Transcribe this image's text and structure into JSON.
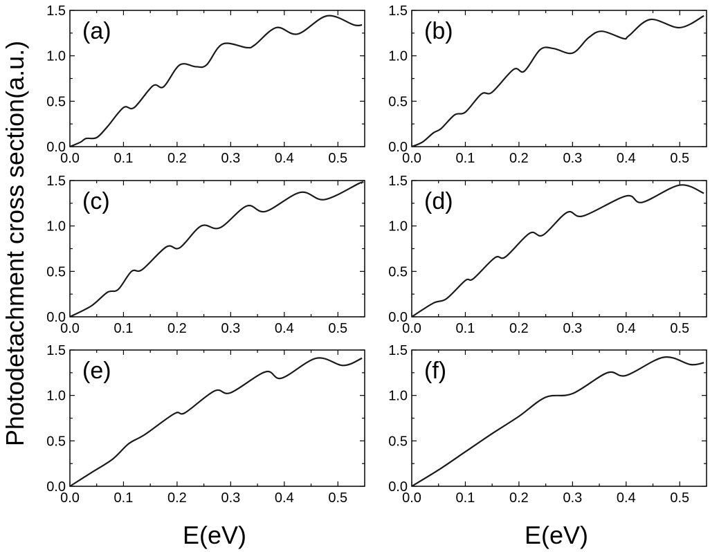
{
  "figure": {
    "ylabel": "Photodetachment cross section(a.u.)",
    "xlabel": "E(eV)"
  },
  "chart_data": [
    {
      "type": "line",
      "panel_label": "(a)",
      "xlim": [
        0,
        0.55
      ],
      "ylim": [
        0,
        1.5
      ],
      "x_ticks": [
        0.0,
        0.1,
        0.2,
        0.3,
        0.4,
        0.5
      ],
      "x_tick_labels": [
        "0.0",
        "0.1",
        "0.2",
        "0.3",
        "0.4",
        "0.5"
      ],
      "y_ticks": [
        0.0,
        0.5,
        1.0,
        1.5
      ],
      "y_tick_labels": [
        "0.0",
        "0.5",
        "1.0",
        "1.5"
      ],
      "x": [
        0,
        0.02,
        0.03,
        0.05,
        0.07,
        0.1,
        0.12,
        0.155,
        0.175,
        0.205,
        0.235,
        0.255,
        0.285,
        0.33,
        0.345,
        0.385,
        0.425,
        0.48,
        0.53,
        0.545
      ],
      "y": [
        0,
        0.05,
        0.09,
        0.1,
        0.22,
        0.43,
        0.43,
        0.67,
        0.66,
        0.9,
        0.88,
        0.9,
        1.13,
        1.09,
        1.12,
        1.31,
        1.24,
        1.44,
        1.34,
        1.34
      ]
    },
    {
      "type": "line",
      "panel_label": "(b)",
      "xlim": [
        0,
        0.55
      ],
      "ylim": [
        0,
        1.5
      ],
      "x_ticks": [
        0.0,
        0.1,
        0.2,
        0.3,
        0.4,
        0.5
      ],
      "x_tick_labels": [
        "0.0",
        "0.1",
        "0.2",
        "0.3",
        "0.4",
        "0.5"
      ],
      "y_ticks": [
        0.0,
        0.5,
        1.0,
        1.5
      ],
      "y_tick_labels": [
        "0.0",
        "0.5",
        "1.0",
        "1.5"
      ],
      "x": [
        0,
        0.02,
        0.04,
        0.055,
        0.08,
        0.1,
        0.13,
        0.15,
        0.19,
        0.21,
        0.24,
        0.265,
        0.3,
        0.33,
        0.355,
        0.395,
        0.405,
        0.445,
        0.5,
        0.545
      ],
      "y": [
        0,
        0.05,
        0.15,
        0.2,
        0.35,
        0.38,
        0.58,
        0.6,
        0.85,
        0.83,
        1.07,
        1.08,
        1.03,
        1.2,
        1.27,
        1.19,
        1.22,
        1.4,
        1.31,
        1.44
      ]
    },
    {
      "type": "line",
      "panel_label": "(c)",
      "xlim": [
        0,
        0.55
      ],
      "ylim": [
        0,
        1.5
      ],
      "x_ticks": [
        0.0,
        0.1,
        0.2,
        0.3,
        0.4,
        0.5
      ],
      "x_tick_labels": [
        "0.0",
        "0.1",
        "0.2",
        "0.3",
        "0.4",
        "0.5"
      ],
      "y_ticks": [
        0.0,
        0.5,
        1.0,
        1.5
      ],
      "y_tick_labels": [
        "0.0",
        "0.5",
        "1.0",
        "1.5"
      ],
      "x": [
        0,
        0.04,
        0.07,
        0.09,
        0.115,
        0.135,
        0.18,
        0.205,
        0.245,
        0.28,
        0.33,
        0.365,
        0.43,
        0.475,
        0.54,
        0.545
      ],
      "y": [
        0,
        0.12,
        0.27,
        0.3,
        0.5,
        0.52,
        0.77,
        0.76,
        1.0,
        0.98,
        1.22,
        1.16,
        1.37,
        1.29,
        1.47,
        1.47
      ]
    },
    {
      "type": "line",
      "panel_label": "(d)",
      "xlim": [
        0,
        0.55
      ],
      "ylim": [
        0,
        1.5
      ],
      "x_ticks": [
        0.0,
        0.1,
        0.2,
        0.3,
        0.4,
        0.5
      ],
      "x_tick_labels": [
        "0.0",
        "0.1",
        "0.2",
        "0.3",
        "0.4",
        "0.5"
      ],
      "y_ticks": [
        0.0,
        0.5,
        1.0,
        1.5
      ],
      "y_tick_labels": [
        "0.0",
        "0.5",
        "1.0",
        "1.5"
      ],
      "x": [
        0,
        0.04,
        0.065,
        0.1,
        0.115,
        0.155,
        0.175,
        0.22,
        0.245,
        0.29,
        0.32,
        0.4,
        0.43,
        0.5,
        0.545
      ],
      "y": [
        0,
        0.15,
        0.2,
        0.4,
        0.42,
        0.65,
        0.66,
        0.92,
        0.9,
        1.15,
        1.11,
        1.33,
        1.26,
        1.45,
        1.36
      ]
    },
    {
      "type": "line",
      "panel_label": "(e)",
      "xlim": [
        0,
        0.55
      ],
      "ylim": [
        0,
        1.5
      ],
      "x_ticks": [
        0.0,
        0.1,
        0.2,
        0.3,
        0.4,
        0.5
      ],
      "x_tick_labels": [
        "0.0",
        "0.1",
        "0.2",
        "0.3",
        "0.4",
        "0.5"
      ],
      "y_ticks": [
        0.0,
        0.5,
        1.0,
        1.5
      ],
      "y_tick_labels": [
        "0.0",
        "0.5",
        "1.0",
        "1.5"
      ],
      "x": [
        0,
        0.04,
        0.08,
        0.11,
        0.14,
        0.195,
        0.215,
        0.27,
        0.3,
        0.365,
        0.395,
        0.46,
        0.51,
        0.545
      ],
      "y": [
        0,
        0.15,
        0.3,
        0.47,
        0.57,
        0.8,
        0.81,
        1.05,
        1.03,
        1.26,
        1.19,
        1.41,
        1.33,
        1.41
      ]
    },
    {
      "type": "line",
      "panel_label": "(f)",
      "xlim": [
        0,
        0.55
      ],
      "ylim": [
        0,
        1.5
      ],
      "x_ticks": [
        0.0,
        0.1,
        0.2,
        0.3,
        0.4,
        0.5
      ],
      "x_tick_labels": [
        "0.0",
        "0.1",
        "0.2",
        "0.3",
        "0.4",
        "0.5"
      ],
      "y_ticks": [
        0.0,
        0.5,
        1.0,
        1.5
      ],
      "y_tick_labels": [
        "0.0",
        "0.5",
        "1.0",
        "1.5"
      ],
      "x": [
        0,
        0.05,
        0.1,
        0.15,
        0.2,
        0.25,
        0.3,
        0.365,
        0.4,
        0.47,
        0.52,
        0.545
      ],
      "y": [
        0,
        0.18,
        0.38,
        0.58,
        0.77,
        0.98,
        1.02,
        1.25,
        1.22,
        1.42,
        1.34,
        1.36
      ]
    }
  ]
}
